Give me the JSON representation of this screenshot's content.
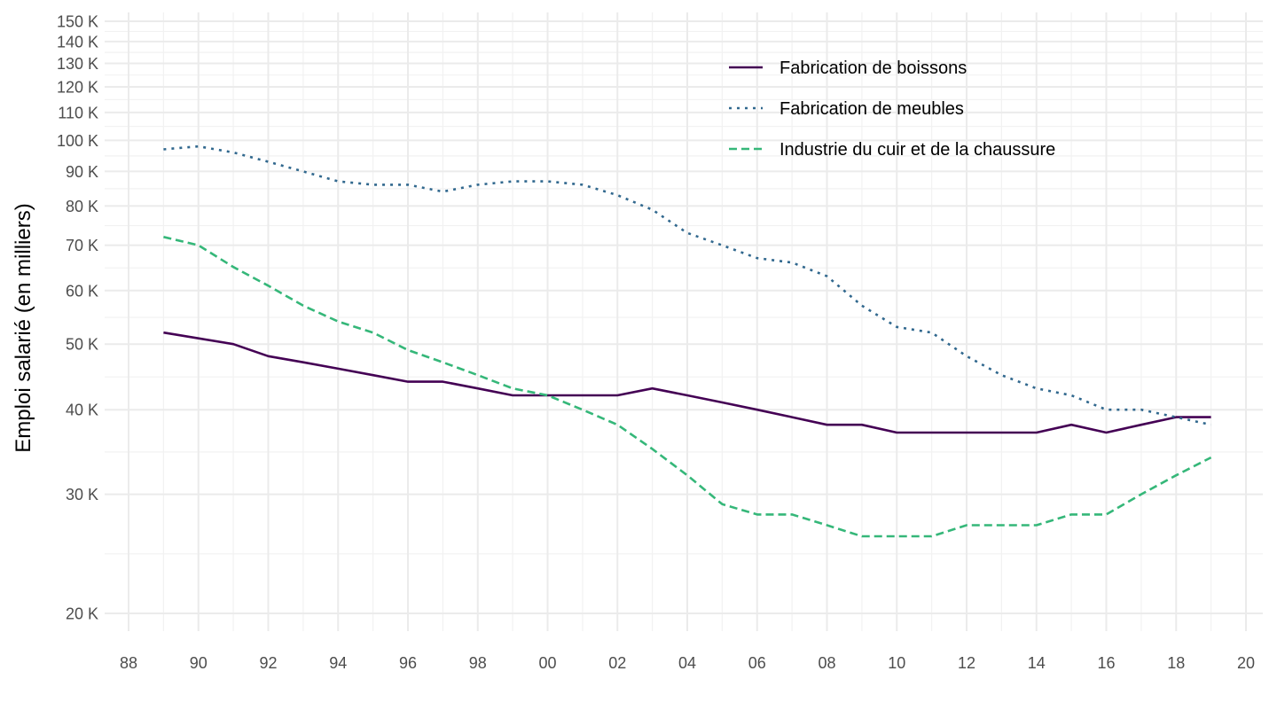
{
  "chart_data": {
    "type": "line",
    "ylabel": "Emploi salarié (en milliers)",
    "xlabel": "",
    "y_scale": "log",
    "ylim": [
      18000,
      152000
    ],
    "xlim": [
      1987.4,
      2020.4
    ],
    "x_ticks": [
      {
        "year": 1988,
        "label": "88"
      },
      {
        "year": 1990,
        "label": "90"
      },
      {
        "year": 1992,
        "label": "92"
      },
      {
        "year": 1994,
        "label": "94"
      },
      {
        "year": 1996,
        "label": "96"
      },
      {
        "year": 1998,
        "label": "98"
      },
      {
        "year": 2000,
        "label": "00"
      },
      {
        "year": 2002,
        "label": "02"
      },
      {
        "year": 2004,
        "label": "04"
      },
      {
        "year": 2006,
        "label": "06"
      },
      {
        "year": 2008,
        "label": "08"
      },
      {
        "year": 2010,
        "label": "10"
      },
      {
        "year": 2012,
        "label": "12"
      },
      {
        "year": 2014,
        "label": "14"
      },
      {
        "year": 2016,
        "label": "16"
      },
      {
        "year": 2018,
        "label": "18"
      },
      {
        "year": 2020,
        "label": "20"
      }
    ],
    "y_ticks": [
      {
        "value": 20000,
        "label": "20 K"
      },
      {
        "value": 30000,
        "label": "30 K"
      },
      {
        "value": 40000,
        "label": "40 K"
      },
      {
        "value": 50000,
        "label": "50 K"
      },
      {
        "value": 60000,
        "label": "60 K"
      },
      {
        "value": 70000,
        "label": "70 K"
      },
      {
        "value": 80000,
        "label": "80 K"
      },
      {
        "value": 90000,
        "label": "90 K"
      },
      {
        "value": 100000,
        "label": "100 K"
      },
      {
        "value": 110000,
        "label": "110 K"
      },
      {
        "value": 120000,
        "label": "120 K"
      },
      {
        "value": 130000,
        "label": "130 K"
      },
      {
        "value": 140000,
        "label": "140 K"
      },
      {
        "value": 150000,
        "label": "150 K"
      }
    ],
    "grid": true,
    "legend_position": "top-right",
    "x": [
      1989,
      1990,
      1991,
      1992,
      1993,
      1994,
      1995,
      1996,
      1997,
      1998,
      1999,
      2000,
      2001,
      2002,
      2003,
      2004,
      2005,
      2006,
      2007,
      2008,
      2009,
      2010,
      2011,
      2012,
      2013,
      2014,
      2015,
      2016,
      2017,
      2018,
      2019
    ],
    "series": [
      {
        "name": "Fabrication de boissons",
        "color": "#440154",
        "dash": "solid",
        "values": [
          52000,
          51000,
          50000,
          48000,
          47000,
          46000,
          45000,
          44000,
          44000,
          43000,
          42000,
          42000,
          42000,
          42000,
          43000,
          42000,
          41000,
          40000,
          39000,
          38000,
          38000,
          37000,
          37000,
          37000,
          37000,
          37000,
          38000,
          37000,
          38000,
          39000,
          39000
        ]
      },
      {
        "name": "Fabrication de meubles",
        "color": "#31688e",
        "dash": "dotted",
        "values": [
          97000,
          98000,
          96000,
          93000,
          90000,
          87000,
          86000,
          86000,
          84000,
          86000,
          87000,
          87000,
          86000,
          83000,
          79000,
          73000,
          70000,
          67000,
          66000,
          63000,
          57000,
          53000,
          52000,
          48000,
          45000,
          43000,
          42000,
          40000,
          40000,
          39000,
          38000
        ]
      },
      {
        "name": "Industrie du cuir et de la chaussure",
        "color": "#35b779",
        "dash": "dashed",
        "values": [
          72000,
          70000,
          65000,
          61000,
          57000,
          54000,
          52000,
          49000,
          47000,
          45000,
          43000,
          42000,
          40000,
          38000,
          35000,
          32000,
          29000,
          28000,
          28000,
          27000,
          26000,
          26000,
          26000,
          27000,
          27000,
          27000,
          28000,
          28000,
          30000,
          32000,
          34000
        ]
      }
    ]
  }
}
